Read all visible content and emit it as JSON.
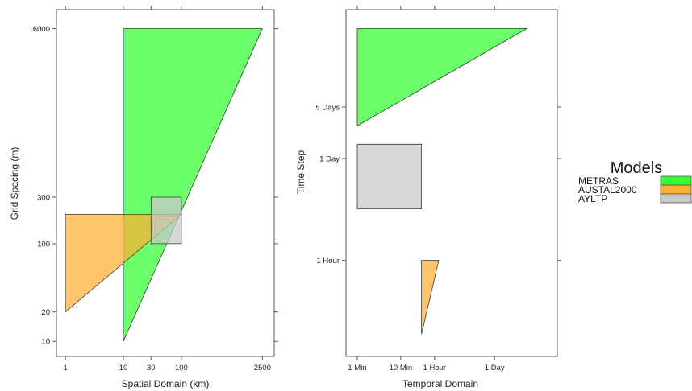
{
  "legend": {
    "title": "Models",
    "items": [
      {
        "label": "METRAS",
        "color": "#33ff33"
      },
      {
        "label": "AUSTAL2000",
        "color": "#ffad33"
      },
      {
        "label": "AYLTP",
        "color": "#c8c8c8"
      }
    ]
  },
  "chart_data": [
    {
      "type": "area",
      "xlabel": "Spatial Domain (km)",
      "ylabel": "Grid Spacing (m)",
      "x_scale": "log",
      "y_scale": "log",
      "xlim": [
        0.7,
        4000
      ],
      "ylim": [
        7,
        25000
      ],
      "x_ticks": [
        {
          "value": 1,
          "label": "1"
        },
        {
          "value": 10,
          "label": "10"
        },
        {
          "value": 30,
          "label": "30"
        },
        {
          "value": 100,
          "label": "100"
        },
        {
          "value": 2500,
          "label": "2500"
        }
      ],
      "y_ticks": [
        {
          "value": 10,
          "label": "10"
        },
        {
          "value": 20,
          "label": "20"
        },
        {
          "value": 100,
          "label": "100"
        },
        {
          "value": 300,
          "label": "300"
        },
        {
          "value": 16000,
          "label": "16000"
        }
      ],
      "series": [
        {
          "name": "METRAS",
          "color": "#33ff33",
          "polygon": [
            [
              10,
              10
            ],
            [
              10,
              16000
            ],
            [
              2500,
              16000
            ]
          ]
        },
        {
          "name": "AUSTAL2000",
          "color": "#ffad33",
          "polygon": [
            [
              1,
              20
            ],
            [
              1,
              200
            ],
            [
              100,
              200
            ]
          ]
        },
        {
          "name": "AYLTP",
          "color": "#c8c8c8",
          "polygon": [
            [
              30,
              100
            ],
            [
              30,
              300
            ],
            [
              100,
              300
            ],
            [
              100,
              100
            ]
          ]
        }
      ]
    },
    {
      "type": "area",
      "xlabel": "Temporal Domain",
      "ylabel": "Time Step",
      "x_scale": "log",
      "y_scale": "log",
      "x_ticks": [
        {
          "value": 1,
          "label": "1 Min"
        },
        {
          "value": 10,
          "label": "10 Min"
        },
        {
          "value": 60,
          "label": "1 Hour"
        },
        {
          "value": 1440,
          "label": "1 Day"
        }
      ],
      "y_ticks": [
        {
          "value": 3600,
          "label": "1 Hour"
        },
        {
          "value": 86400,
          "label": "1 Day"
        },
        {
          "value": 432000,
          "label": "5 Days"
        }
      ],
      "x_units": "minutes",
      "y_units": "seconds",
      "xlim": [
        0.55,
        40000
      ],
      "ylim": [
        180,
        9000000
      ],
      "series": [
        {
          "name": "METRAS",
          "color": "#33ff33",
          "polygon": [
            [
              1,
              240000
            ],
            [
              1,
              5000000
            ],
            [
              8000,
              5000000
            ]
          ]
        },
        {
          "name": "AUSTAL2000",
          "color": "#ffad33",
          "polygon": [
            [
              30,
              360
            ],
            [
              30,
              3600
            ],
            [
              75,
              3600
            ]
          ]
        },
        {
          "name": "AYLTP",
          "color": "#c8c8c8",
          "polygon": [
            [
              1,
              18000
            ],
            [
              1,
              135000
            ],
            [
              30,
              135000
            ],
            [
              30,
              18000
            ]
          ]
        }
      ]
    }
  ]
}
